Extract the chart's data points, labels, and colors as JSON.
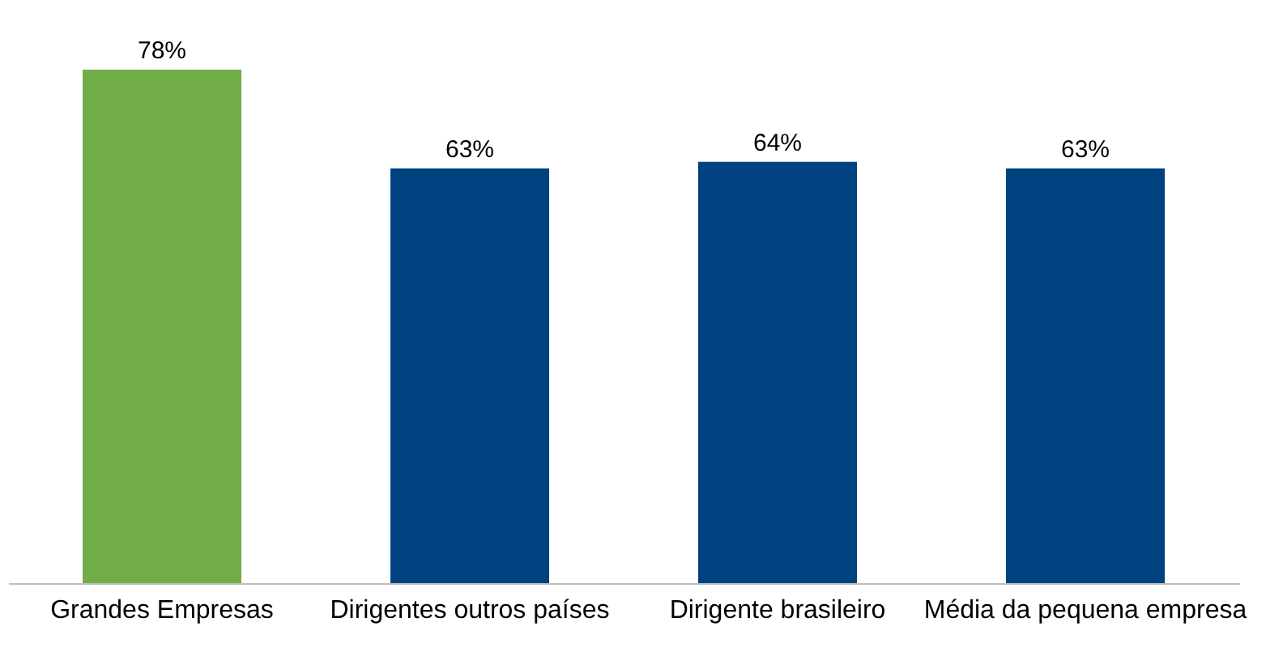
{
  "chart_data": {
    "type": "bar",
    "categories": [
      "Grandes Empresas",
      "Dirigentes  outros países",
      "Dirigente brasileiro",
      "Média da pequena empresa"
    ],
    "values": [
      78,
      63,
      64,
      63
    ],
    "colors": [
      "#70ad47",
      "#00427f",
      "#00427f",
      "#00427f"
    ],
    "value_labels": [
      "78%",
      "63%",
      "64%",
      "63%"
    ]
  }
}
